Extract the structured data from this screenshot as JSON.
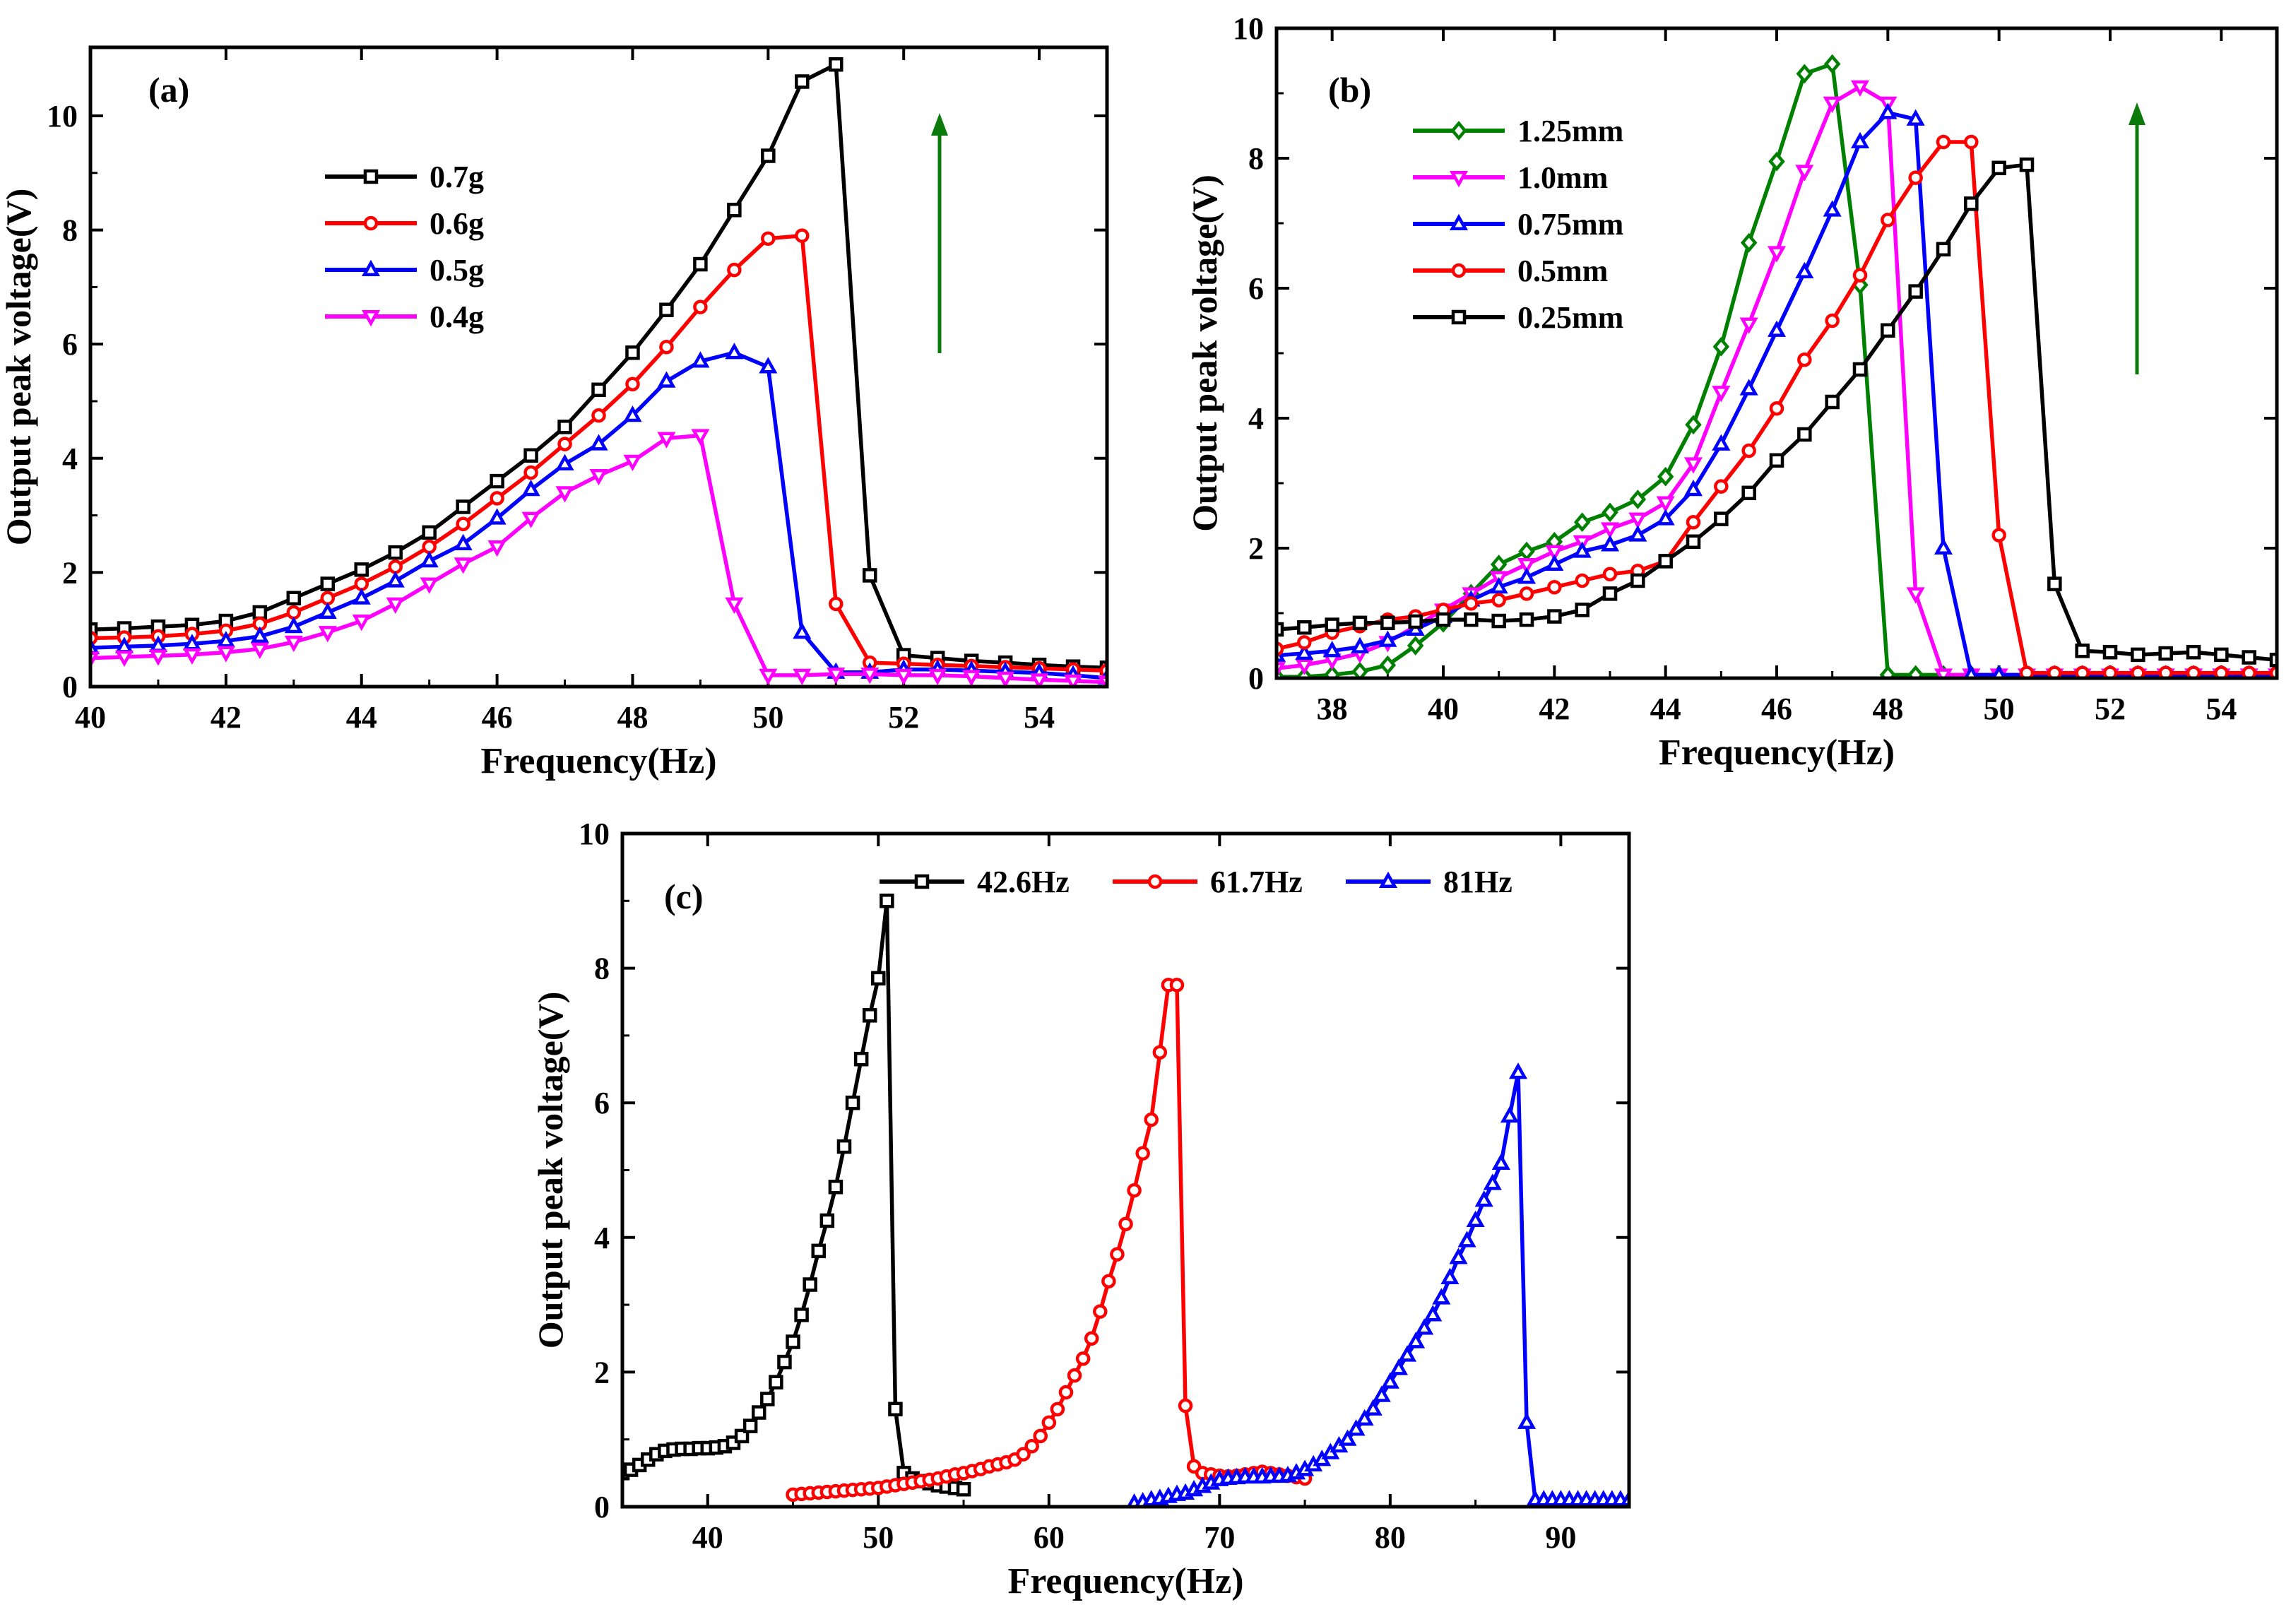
{
  "chart_data": [
    {
      "id": "a",
      "panel_label": "(a)",
      "type": "line",
      "xlabel": "Frequency(Hz)",
      "ylabel": "Output peak voltage(V)",
      "xlim": [
        40,
        55
      ],
      "ylim": [
        0,
        11.2
      ],
      "xticks": [
        40,
        42,
        44,
        46,
        48,
        50,
        52,
        54
      ],
      "yticks": [
        0,
        2,
        4,
        6,
        8,
        10
      ],
      "legend_position": "upper-left",
      "annotation": "green upward arrow",
      "series": [
        {
          "name": "0.7g",
          "color": "#000000",
          "marker": "square",
          "x": [
            40,
            40.5,
            41,
            41.5,
            42,
            42.5,
            43,
            43.5,
            44,
            44.5,
            45,
            45.5,
            46,
            46.5,
            47,
            47.5,
            48,
            48.5,
            49,
            49.5,
            50,
            50.5,
            51,
            51.5,
            52,
            52.5,
            53,
            53.5,
            54,
            54.5,
            55
          ],
          "y": [
            1.0,
            1.02,
            1.05,
            1.08,
            1.15,
            1.3,
            1.55,
            1.8,
            2.05,
            2.35,
            2.7,
            3.15,
            3.6,
            4.05,
            4.55,
            5.2,
            5.85,
            6.6,
            7.4,
            8.35,
            9.3,
            10.6,
            10.9,
            1.95,
            0.55,
            0.5,
            0.45,
            0.42,
            0.38,
            0.35,
            0.33
          ]
        },
        {
          "name": "0.6g",
          "color": "#ff0000",
          "marker": "circle",
          "x": [
            40,
            40.5,
            41,
            41.5,
            42,
            42.5,
            43,
            43.5,
            44,
            44.5,
            45,
            45.5,
            46,
            46.5,
            47,
            47.5,
            48,
            48.5,
            49,
            49.5,
            50,
            50.5,
            51,
            51.5,
            52,
            52.5,
            53,
            53.5,
            54,
            54.5,
            55
          ],
          "y": [
            0.85,
            0.86,
            0.88,
            0.92,
            0.98,
            1.1,
            1.3,
            1.55,
            1.8,
            2.1,
            2.45,
            2.85,
            3.3,
            3.75,
            4.25,
            4.75,
            5.3,
            5.95,
            6.65,
            7.3,
            7.85,
            7.9,
            1.45,
            0.42,
            0.4,
            0.38,
            0.36,
            0.34,
            0.32,
            0.3,
            0.28
          ]
        },
        {
          "name": "0.5g",
          "color": "#0000ff",
          "marker": "triangle-up",
          "x": [
            40,
            40.5,
            41,
            41.5,
            42,
            42.5,
            43,
            43.5,
            44,
            44.5,
            45,
            45.5,
            46,
            46.5,
            47,
            47.5,
            48,
            48.5,
            49,
            49.5,
            50,
            50.5,
            51,
            51.5,
            52,
            52.5,
            53,
            53.5,
            54,
            54.5,
            55
          ],
          "y": [
            0.68,
            0.7,
            0.72,
            0.75,
            0.8,
            0.88,
            1.05,
            1.3,
            1.55,
            1.85,
            2.2,
            2.5,
            2.95,
            3.45,
            3.9,
            4.25,
            4.75,
            5.35,
            5.7,
            5.85,
            5.6,
            0.95,
            0.25,
            0.25,
            0.3,
            0.3,
            0.28,
            0.26,
            0.24,
            0.2,
            0.15
          ]
        },
        {
          "name": "0.4g",
          "color": "#ff00ff",
          "marker": "triangle-down",
          "x": [
            40,
            40.5,
            41,
            41.5,
            42,
            42.5,
            43,
            43.5,
            44,
            44.5,
            45,
            45.5,
            46,
            46.5,
            47,
            47.5,
            48,
            48.5,
            49,
            49.5,
            50,
            50.5,
            51,
            51.5,
            52,
            52.5,
            53,
            53.5,
            54,
            54.5,
            55
          ],
          "y": [
            0.5,
            0.52,
            0.54,
            0.56,
            0.6,
            0.66,
            0.78,
            0.95,
            1.15,
            1.45,
            1.8,
            2.15,
            2.45,
            2.95,
            3.4,
            3.7,
            3.95,
            4.35,
            4.4,
            1.45,
            0.2,
            0.2,
            0.22,
            0.22,
            0.2,
            0.2,
            0.18,
            0.15,
            0.12,
            0.1,
            0.08
          ]
        }
      ]
    },
    {
      "id": "b",
      "panel_label": "(b)",
      "type": "line",
      "xlabel": "Frequency(Hz)",
      "ylabel": "Output peak voltage(V)",
      "xlim": [
        37,
        55
      ],
      "ylim": [
        0,
        10
      ],
      "xticks": [
        38,
        40,
        42,
        44,
        46,
        48,
        50,
        52,
        54
      ],
      "yticks": [
        0,
        2,
        4,
        6,
        8,
        10
      ],
      "legend_position": "upper-left",
      "annotation": "green upward arrow",
      "series": [
        {
          "name": "1.25mm",
          "color": "#008000",
          "marker": "diamond",
          "x": [
            37,
            37.5,
            38,
            38.5,
            39,
            39.5,
            40,
            40.5,
            41,
            41.5,
            42,
            42.5,
            43,
            43.5,
            44,
            44.5,
            45,
            45.5,
            46,
            46.5,
            47,
            47.5,
            48,
            48.5,
            49,
            49.5,
            50,
            50.5,
            51,
            51.5,
            52,
            52.5,
            53,
            53.5,
            54,
            54.5,
            55
          ],
          "y": [
            0.02,
            0.02,
            0.05,
            0.1,
            0.2,
            0.5,
            0.85,
            1.3,
            1.75,
            1.95,
            2.1,
            2.4,
            2.55,
            2.75,
            3.1,
            3.9,
            5.1,
            6.7,
            7.95,
            9.3,
            9.45,
            6.05,
            0.05,
            0.05,
            0.05,
            0.05,
            0.05,
            0.05,
            0.05,
            0.05,
            0.05,
            0.05,
            0.05,
            0.05,
            0.05,
            0.05,
            0.05
          ]
        },
        {
          "name": "1.0mm",
          "color": "#ff00ff",
          "marker": "triangle-down",
          "x": [
            37,
            37.5,
            38,
            38.5,
            39,
            39.5,
            40,
            40.5,
            41,
            41.5,
            42,
            42.5,
            43,
            43.5,
            44,
            44.5,
            45,
            45.5,
            46,
            46.5,
            47,
            47.5,
            48,
            48.5,
            49,
            49.5,
            50,
            50.5,
            51,
            51.5,
            52,
            52.5,
            53,
            53.5,
            54,
            54.5,
            55
          ],
          "y": [
            0.15,
            0.2,
            0.28,
            0.38,
            0.55,
            0.8,
            1.05,
            1.3,
            1.55,
            1.75,
            1.95,
            2.1,
            2.3,
            2.45,
            2.7,
            3.3,
            4.4,
            5.45,
            6.55,
            7.8,
            8.85,
            9.1,
            8.85,
            1.3,
            0.05,
            0.05,
            0.05,
            0.05,
            0.05,
            0.05,
            0.05,
            0.05,
            0.05,
            0.05,
            0.05,
            0.05,
            0.05
          ]
        },
        {
          "name": "0.75mm",
          "color": "#0000ff",
          "marker": "triangle-up",
          "x": [
            37,
            37.5,
            38,
            38.5,
            39,
            39.5,
            40,
            40.5,
            41,
            41.5,
            42,
            42.5,
            43,
            43.5,
            44,
            44.5,
            45,
            45.5,
            46,
            46.5,
            47,
            47.5,
            48,
            48.5,
            49,
            49.5,
            50,
            50.5,
            51,
            51.5,
            52,
            52.5,
            53,
            53.5,
            54,
            54.5,
            55
          ],
          "y": [
            0.35,
            0.38,
            0.42,
            0.48,
            0.58,
            0.75,
            0.95,
            1.2,
            1.4,
            1.55,
            1.75,
            1.95,
            2.05,
            2.2,
            2.45,
            2.9,
            3.6,
            4.45,
            5.35,
            6.25,
            7.2,
            8.25,
            8.7,
            8.6,
            2.0,
            0.05,
            0.05,
            0.05,
            0.05,
            0.05,
            0.05,
            0.05,
            0.05,
            0.05,
            0.05,
            0.05,
            0.05
          ]
        },
        {
          "name": "0.5mm",
          "color": "#ff0000",
          "marker": "circle",
          "x": [
            37,
            37.5,
            38,
            38.5,
            39,
            39.5,
            40,
            40.5,
            41,
            41.5,
            42,
            42.5,
            43,
            43.5,
            44,
            44.5,
            45,
            45.5,
            46,
            46.5,
            47,
            47.5,
            48,
            48.5,
            49,
            49.5,
            50,
            50.5,
            51,
            51.5,
            52,
            52.5,
            53,
            53.5,
            54,
            54.5,
            55
          ],
          "y": [
            0.45,
            0.55,
            0.7,
            0.8,
            0.9,
            0.95,
            1.05,
            1.15,
            1.2,
            1.3,
            1.4,
            1.5,
            1.6,
            1.65,
            1.8,
            2.4,
            2.95,
            3.5,
            4.15,
            4.9,
            5.5,
            6.2,
            7.05,
            7.7,
            8.25,
            8.25,
            2.2,
            0.08,
            0.08,
            0.08,
            0.08,
            0.08,
            0.08,
            0.08,
            0.08,
            0.08,
            0.08
          ]
        },
        {
          "name": "0.25mm",
          "color": "#000000",
          "marker": "square",
          "x": [
            37,
            37.5,
            38,
            38.5,
            39,
            39.5,
            40,
            40.5,
            41,
            41.5,
            42,
            42.5,
            43,
            43.5,
            44,
            44.5,
            45,
            45.5,
            46,
            46.5,
            47,
            47.5,
            48,
            48.5,
            49,
            49.5,
            50,
            50.5,
            51,
            51.5,
            52,
            52.5,
            53,
            53.5,
            54,
            54.5,
            55
          ],
          "y": [
            0.75,
            0.78,
            0.82,
            0.85,
            0.85,
            0.87,
            0.9,
            0.9,
            0.88,
            0.9,
            0.95,
            1.05,
            1.3,
            1.5,
            1.8,
            2.1,
            2.45,
            2.85,
            3.35,
            3.75,
            4.25,
            4.75,
            5.35,
            5.95,
            6.6,
            7.3,
            7.85,
            7.9,
            1.45,
            0.42,
            0.4,
            0.36,
            0.38,
            0.4,
            0.36,
            0.32,
            0.28
          ]
        }
      ]
    },
    {
      "id": "c",
      "panel_label": "(c)",
      "type": "line",
      "xlabel": "Frequency(Hz)",
      "ylabel": "Output peak voltage(V)",
      "xlim": [
        35,
        94
      ],
      "ylim": [
        0,
        10
      ],
      "xticks": [
        40,
        50,
        60,
        70,
        80,
        90
      ],
      "yticks": [
        0,
        2,
        4,
        6,
        8,
        10
      ],
      "legend_position": "top",
      "series": [
        {
          "name": "42.6Hz",
          "color": "#000000",
          "marker": "square",
          "x": [
            35,
            35.5,
            36,
            36.5,
            37,
            37.5,
            38,
            38.5,
            39,
            39.5,
            40,
            40.5,
            41,
            41.5,
            42,
            42.5,
            43,
            43.5,
            44,
            44.5,
            45,
            45.5,
            46,
            46.5,
            47,
            47.5,
            48,
            48.5,
            49,
            49.5,
            50,
            50.5,
            51,
            51.5,
            52,
            52.5,
            53,
            53.5,
            54,
            54.5,
            55
          ],
          "y": [
            0.5,
            0.55,
            0.62,
            0.7,
            0.78,
            0.83,
            0.85,
            0.86,
            0.86,
            0.87,
            0.87,
            0.88,
            0.9,
            0.95,
            1.05,
            1.2,
            1.4,
            1.6,
            1.85,
            2.15,
            2.45,
            2.85,
            3.3,
            3.8,
            4.25,
            4.75,
            5.35,
            6.0,
            6.65,
            7.3,
            7.85,
            9.0,
            1.45,
            0.5,
            0.42,
            0.38,
            0.35,
            0.32,
            0.3,
            0.28,
            0.26
          ]
        },
        {
          "name": "61.7Hz",
          "color": "#ff0000",
          "marker": "circle",
          "x": [
            45,
            45.5,
            46,
            46.5,
            47,
            47.5,
            48,
            48.5,
            49,
            49.5,
            50,
            50.5,
            51,
            51.5,
            52,
            52.5,
            53,
            53.5,
            54,
            54.5,
            55,
            55.5,
            56,
            56.5,
            57,
            57.5,
            58,
            58.5,
            59,
            59.5,
            60,
            60.5,
            61,
            61.5,
            62,
            62.5,
            63,
            63.5,
            64,
            64.5,
            65,
            65.5,
            66,
            66.5,
            67,
            67.5,
            68,
            68.5,
            69,
            69.5,
            70,
            70.5,
            71,
            71.5,
            72,
            72.5,
            73,
            73.5,
            74,
            74.5,
            75
          ],
          "y": [
            0.18,
            0.19,
            0.2,
            0.21,
            0.22,
            0.23,
            0.24,
            0.25,
            0.26,
            0.27,
            0.28,
            0.3,
            0.32,
            0.34,
            0.36,
            0.38,
            0.4,
            0.42,
            0.45,
            0.48,
            0.5,
            0.53,
            0.56,
            0.6,
            0.63,
            0.66,
            0.7,
            0.78,
            0.9,
            1.05,
            1.25,
            1.45,
            1.7,
            1.95,
            2.2,
            2.5,
            2.9,
            3.35,
            3.75,
            4.2,
            4.7,
            5.25,
            5.75,
            6.75,
            7.75,
            7.75,
            1.5,
            0.6,
            0.5,
            0.48,
            0.46,
            0.45,
            0.46,
            0.48,
            0.5,
            0.52,
            0.5,
            0.48,
            0.46,
            0.44,
            0.42
          ]
        },
        {
          "name": "81Hz",
          "color": "#0000ff",
          "marker": "triangle-up",
          "x": [
            65,
            65.5,
            66,
            66.5,
            67,
            67.5,
            68,
            68.5,
            69,
            69.5,
            70,
            70.5,
            71,
            71.5,
            72,
            72.5,
            73,
            73.5,
            74,
            74.5,
            75,
            75.5,
            76,
            76.5,
            77,
            77.5,
            78,
            78.5,
            79,
            79.5,
            80,
            80.5,
            81,
            81.5,
            82,
            82.5,
            83,
            83.5,
            84,
            84.5,
            85,
            85.5,
            86,
            86.5,
            87,
            87.5,
            88,
            88.5,
            89,
            89.5,
            90,
            90.5,
            91,
            91.5,
            92,
            92.5,
            93,
            93.5,
            94
          ],
          "y": [
            0.05,
            0.07,
            0.1,
            0.12,
            0.15,
            0.18,
            0.2,
            0.25,
            0.3,
            0.35,
            0.4,
            0.42,
            0.43,
            0.44,
            0.44,
            0.44,
            0.45,
            0.45,
            0.46,
            0.5,
            0.55,
            0.62,
            0.7,
            0.8,
            0.9,
            1.0,
            1.15,
            1.3,
            1.45,
            1.65,
            1.85,
            2.05,
            2.25,
            2.45,
            2.65,
            2.85,
            3.1,
            3.4,
            3.7,
            3.95,
            4.25,
            4.55,
            4.8,
            5.1,
            5.8,
            6.45,
            1.25,
            0.1,
            0.1,
            0.1,
            0.1,
            0.1,
            0.1,
            0.1,
            0.1,
            0.1,
            0.1,
            0.1,
            0.1
          ]
        }
      ]
    }
  ]
}
